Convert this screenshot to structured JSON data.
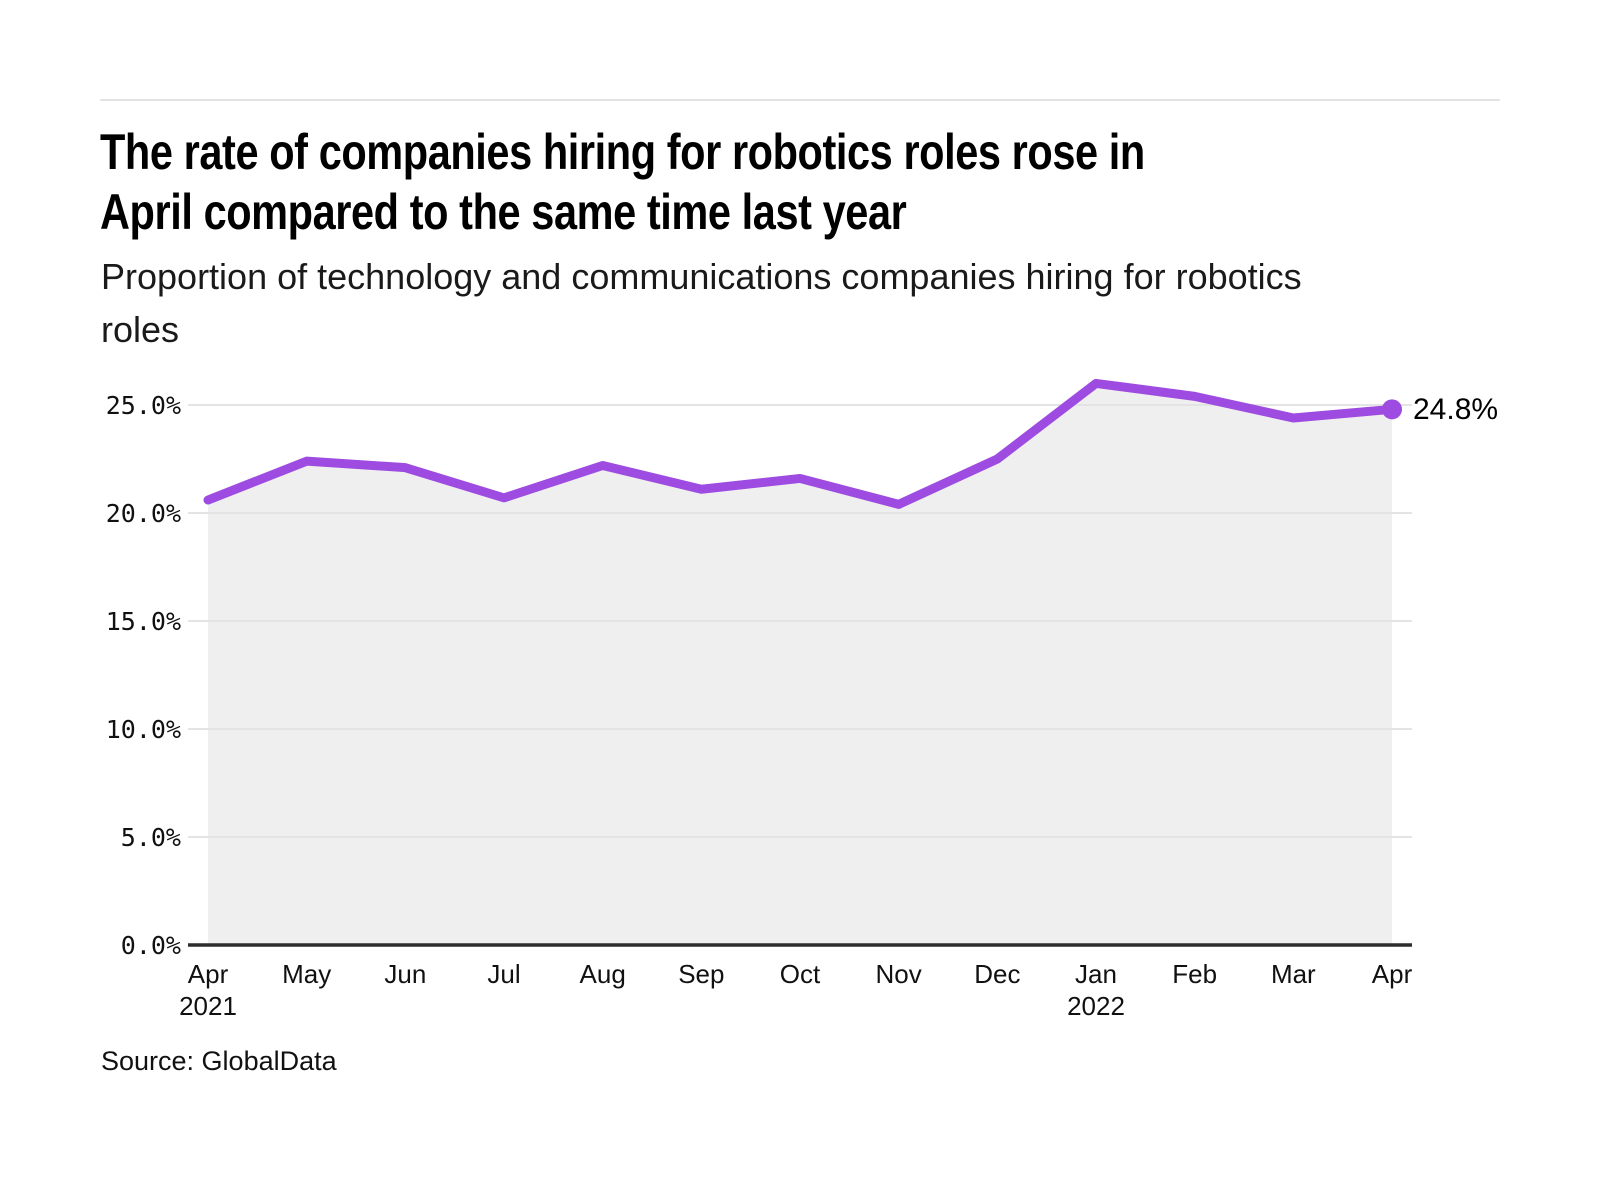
{
  "page": {
    "title_line1": "The rate of companies hiring for robotics roles rose in",
    "title_line2": "April compared to the same time last year",
    "subtitle_line1": "Proportion of technology and communications companies hiring for robotics",
    "subtitle_line2": "roles",
    "source": "Source: GlobalData"
  },
  "chart_data": {
    "type": "area",
    "title": "The rate of companies hiring for robotics roles rose in April compared to the same time last year",
    "subtitle": "Proportion of technology and communications companies hiring for robotics roles",
    "categories": [
      "Apr",
      "May",
      "Jun",
      "Jul",
      "Aug",
      "Sep",
      "Oct",
      "Nov",
      "Dec",
      "Jan",
      "Feb",
      "Mar",
      "Apr"
    ],
    "category_year_labels": [
      {
        "index": 0,
        "label": "2021"
      },
      {
        "index": 9,
        "label": "2022"
      }
    ],
    "values": [
      20.6,
      22.4,
      22.1,
      20.7,
      22.2,
      21.1,
      21.6,
      20.4,
      22.5,
      26.0,
      25.4,
      24.4,
      24.8
    ],
    "unit": "%",
    "last_point_label": "24.8%",
    "ylim": [
      0,
      26.2
    ],
    "yticks": [
      {
        "value": 0,
        "label": "0.0%"
      },
      {
        "value": 5,
        "label": "5.0%"
      },
      {
        "value": 10,
        "label": "10.0%"
      },
      {
        "value": 15,
        "label": "15.0%"
      },
      {
        "value": 20,
        "label": "20.0%"
      },
      {
        "value": 25,
        "label": "25.0%"
      }
    ],
    "grid": true,
    "legend": "none",
    "colors": {
      "line": "#9d4be0",
      "marker": "#9d4be0",
      "area_fill": "#efefef",
      "gridline": "#e4e4e4",
      "axis_line": "#2d2d2d",
      "text": "#111111"
    },
    "source": "GlobalData"
  }
}
